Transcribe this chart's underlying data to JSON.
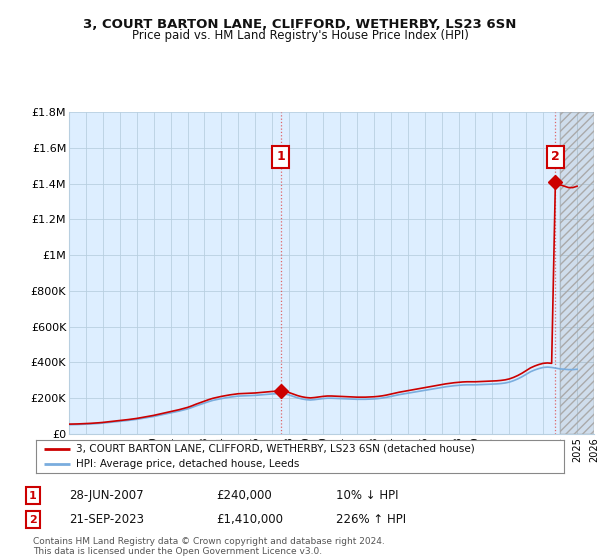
{
  "title": "3, COURT BARTON LANE, CLIFFORD, WETHERBY, LS23 6SN",
  "subtitle": "Price paid vs. HM Land Registry's House Price Index (HPI)",
  "legend_line1": "3, COURT BARTON LANE, CLIFFORD, WETHERBY, LS23 6SN (detached house)",
  "legend_line2": "HPI: Average price, detached house, Leeds",
  "footnote1": "Contains HM Land Registry data © Crown copyright and database right 2024.",
  "footnote2": "This data is licensed under the Open Government Licence v3.0.",
  "transaction1_label": "28-JUN-2007",
  "transaction1_price": "£240,000",
  "transaction1_pct": "10% ↓ HPI",
  "transaction2_label": "21-SEP-2023",
  "transaction2_price": "£1,410,000",
  "transaction2_pct": "226% ↑ HPI",
  "property_color": "#cc0000",
  "hpi_color": "#7aadde",
  "background_color": "#ffffff",
  "chart_bg_color": "#ddeeff",
  "grid_color": "#b8cfe0",
  "ylim": [
    0,
    1800000
  ],
  "yticks": [
    0,
    200000,
    400000,
    600000,
    800000,
    1000000,
    1200000,
    1400000,
    1600000,
    1800000
  ],
  "ytick_labels": [
    "£0",
    "£200K",
    "£400K",
    "£600K",
    "£800K",
    "£1M",
    "£1.2M",
    "£1.4M",
    "£1.6M",
    "£1.8M"
  ],
  "hpi_years": [
    1995.0,
    1995.25,
    1995.5,
    1995.75,
    1996.0,
    1996.25,
    1996.5,
    1996.75,
    1997.0,
    1997.25,
    1997.5,
    1997.75,
    1998.0,
    1998.25,
    1998.5,
    1998.75,
    1999.0,
    1999.25,
    1999.5,
    1999.75,
    2000.0,
    2000.25,
    2000.5,
    2000.75,
    2001.0,
    2001.25,
    2001.5,
    2001.75,
    2002.0,
    2002.25,
    2002.5,
    2002.75,
    2003.0,
    2003.25,
    2003.5,
    2003.75,
    2004.0,
    2004.25,
    2004.5,
    2004.75,
    2005.0,
    2005.25,
    2005.5,
    2005.75,
    2006.0,
    2006.25,
    2006.5,
    2006.75,
    2007.0,
    2007.25,
    2007.5,
    2007.75,
    2008.0,
    2008.25,
    2008.5,
    2008.75,
    2009.0,
    2009.25,
    2009.5,
    2009.75,
    2010.0,
    2010.25,
    2010.5,
    2010.75,
    2011.0,
    2011.25,
    2011.5,
    2011.75,
    2012.0,
    2012.25,
    2012.5,
    2012.75,
    2013.0,
    2013.25,
    2013.5,
    2013.75,
    2014.0,
    2014.25,
    2014.5,
    2014.75,
    2015.0,
    2015.25,
    2015.5,
    2015.75,
    2016.0,
    2016.25,
    2016.5,
    2016.75,
    2017.0,
    2017.25,
    2017.5,
    2017.75,
    2018.0,
    2018.25,
    2018.5,
    2018.75,
    2019.0,
    2019.25,
    2019.5,
    2019.75,
    2020.0,
    2020.25,
    2020.5,
    2020.75,
    2021.0,
    2021.25,
    2021.5,
    2021.75,
    2022.0,
    2022.25,
    2022.5,
    2022.75,
    2023.0,
    2023.25,
    2023.5,
    2023.75,
    2024.0,
    2024.25,
    2024.5,
    2024.75,
    2025.0
  ],
  "hpi_values": [
    52000,
    52500,
    53000,
    54000,
    55000,
    56000,
    57500,
    59000,
    61000,
    63500,
    66000,
    68500,
    71000,
    73500,
    76000,
    79000,
    82000,
    86000,
    90000,
    94000,
    98000,
    103000,
    108000,
    113000,
    118000,
    123000,
    128000,
    134000,
    140000,
    148000,
    157000,
    165000,
    173000,
    181000,
    188000,
    193000,
    198000,
    202000,
    206000,
    209000,
    212000,
    213000,
    214000,
    215000,
    216000,
    218000,
    220000,
    222000,
    224000,
    225000,
    226000,
    224000,
    218000,
    210000,
    202000,
    196000,
    192000,
    190000,
    192000,
    195000,
    198000,
    200000,
    200000,
    199000,
    198000,
    197000,
    196000,
    195000,
    194000,
    194000,
    194000,
    195000,
    196000,
    198000,
    201000,
    205000,
    210000,
    215000,
    220000,
    224000,
    228000,
    232000,
    236000,
    240000,
    244000,
    248000,
    252000,
    256000,
    260000,
    264000,
    267000,
    270000,
    272000,
    274000,
    275000,
    275000,
    275000,
    276000,
    277000,
    278000,
    279000,
    280000,
    282000,
    285000,
    290000,
    298000,
    308000,
    320000,
    334000,
    348000,
    358000,
    366000,
    372000,
    374000,
    372000,
    368000,
    364000,
    362000,
    360000,
    360000,
    362000
  ],
  "transaction1_x": 2007.5,
  "transaction1_y": 240000,
  "transaction2_x": 2023.72,
  "transaction2_y": 1410000,
  "vline_color": "#dd4444",
  "marker_color": "#cc0000",
  "xmin": 1995,
  "xmax": 2026,
  "hatch_start": 2024.0
}
